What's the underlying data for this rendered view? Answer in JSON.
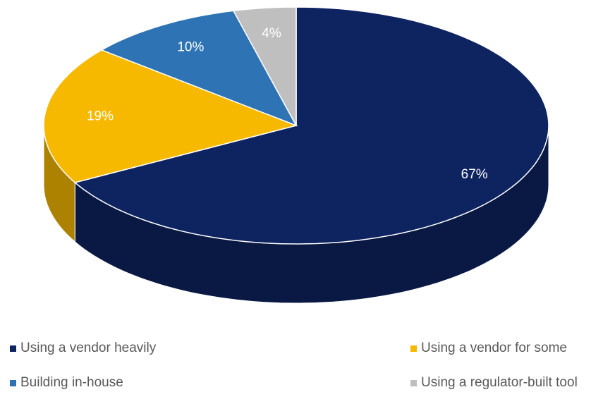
{
  "chart_data": {
    "type": "pie",
    "categories": [
      "Using a vendor heavily",
      "Using a vendor for some",
      "Building in-house",
      "Using a regulator-built tool"
    ],
    "values": [
      67,
      19,
      10,
      4
    ],
    "value_labels": [
      "67%",
      "19%",
      "10%",
      "4%"
    ],
    "colors": [
      "#0e2461",
      "#f7b900",
      "#2e74b5",
      "#bfbfbf"
    ],
    "legend": "bottom"
  }
}
